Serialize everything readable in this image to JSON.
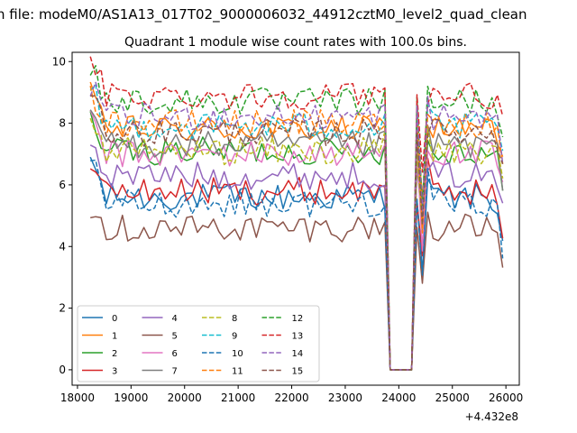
{
  "chart_data": {
    "type": "line",
    "suptitle": "n file: modeM0/AS1A13_017T02_9000006032_44912cztM0_level2_quad_clean",
    "title": "Quadrant 1 module wise count rates with 100.0s bins.",
    "xlabel": "",
    "ylabel": "",
    "x_offset_label": "+4.432e8",
    "xlim": [
      17900,
      26250
    ],
    "ylim": [
      -0.5,
      10.3
    ],
    "xticks": [
      18000,
      19000,
      20000,
      21000,
      22000,
      23000,
      24000,
      25000,
      26000
    ],
    "yticks": [
      0,
      2,
      4,
      6,
      8,
      10
    ],
    "x_segments": [
      [
        18240,
        23740
      ],
      [
        23840,
        24240
      ],
      [
        24340,
        25940
      ]
    ],
    "legend_location": "lower-left",
    "legend_columns": 4,
    "series": [
      {
        "name": "0",
        "color": "#1f77b4",
        "dash": "solid",
        "base": 5.6
      },
      {
        "name": "1",
        "color": "#ff7f0e",
        "dash": "solid",
        "base": 7.8
      },
      {
        "name": "2",
        "color": "#2ca02c",
        "dash": "solid",
        "base": 7.1
      },
      {
        "name": "3",
        "color": "#d62728",
        "dash": "solid",
        "base": 5.8
      },
      {
        "name": "4",
        "color": "#9467bd",
        "dash": "solid",
        "base": 6.3
      },
      {
        "name": "5",
        "color": "#8c564b",
        "dash": "solid",
        "base": 4.6
      },
      {
        "name": "6",
        "color": "#e377c2",
        "dash": "solid",
        "base": 7.0
      },
      {
        "name": "7",
        "color": "#7f7f7f",
        "dash": "solid",
        "base": 7.3
      },
      {
        "name": "8",
        "color": "#bcbd22",
        "dash": "dashed",
        "base": 7.1
      },
      {
        "name": "9",
        "color": "#17becf",
        "dash": "dashed",
        "base": 7.9
      },
      {
        "name": "10",
        "color": "#1f77b4",
        "dash": "dashed",
        "base": 5.4
      },
      {
        "name": "11",
        "color": "#ff7f0e",
        "dash": "dashed",
        "base": 8.0
      },
      {
        "name": "12",
        "color": "#2ca02c",
        "dash": "dashed",
        "base": 8.7
      },
      {
        "name": "13",
        "color": "#d62728",
        "dash": "dashed",
        "base": 8.9
      },
      {
        "name": "14",
        "color": "#9467bd",
        "dash": "dashed",
        "base": 8.2
      },
      {
        "name": "15",
        "color": "#8c564b",
        "dash": "dashed",
        "base": 7.7
      }
    ]
  }
}
